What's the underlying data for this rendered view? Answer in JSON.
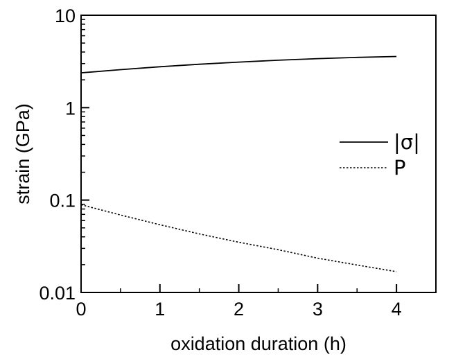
{
  "chart_data": {
    "type": "line",
    "title": "",
    "xlabel": "oxidation duration (h)",
    "ylabel": "strain (GPa)",
    "xlim": [
      0,
      4.5
    ],
    "ylim": [
      0.01,
      10
    ],
    "yscale": "log",
    "xticks": [
      0,
      1,
      2,
      3,
      4
    ],
    "xtick_labels": [
      "0",
      "1",
      "2",
      "3",
      "4"
    ],
    "yticks": [
      0.01,
      0.1,
      1,
      10
    ],
    "ytick_labels": [
      "0.01",
      "0.1",
      "1",
      "10"
    ],
    "grid": false,
    "legend_position": "right",
    "series": [
      {
        "name": "|σ|",
        "style": "solid",
        "color": "#000000",
        "x": [
          0,
          0.5,
          1,
          1.5,
          2,
          2.5,
          3,
          3.5,
          4
        ],
        "y": [
          2.38,
          2.58,
          2.77,
          2.95,
          3.11,
          3.26,
          3.39,
          3.5,
          3.58
        ]
      },
      {
        "name": "P",
        "style": "dotted",
        "color": "#000000",
        "x": [
          0,
          0.5,
          1,
          1.5,
          2,
          2.5,
          3,
          3.5,
          4
        ],
        "y": [
          0.089,
          0.069,
          0.054,
          0.043,
          0.035,
          0.029,
          0.0235,
          0.0198,
          0.0168
        ]
      }
    ]
  }
}
